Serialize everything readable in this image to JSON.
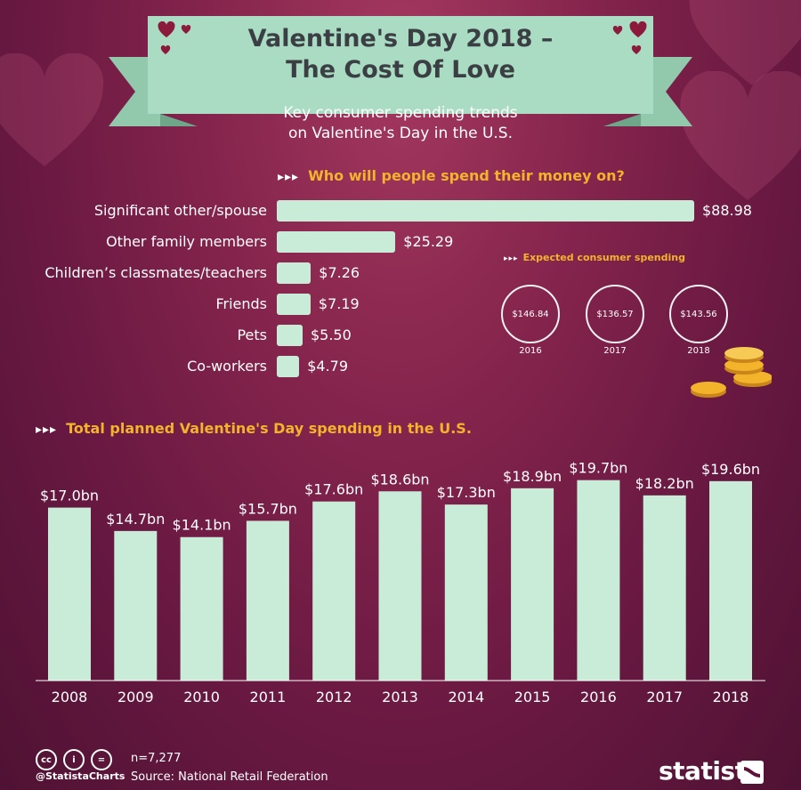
{
  "header": {
    "title_line1": "Valentine's Day 2018 –",
    "title_line2": "The Cost Of Love",
    "subtitle_line1": "Key consumer spending trends",
    "subtitle_line2": "on Valentine's Day in the U.S."
  },
  "section1": {
    "arrows": "▸▸▸",
    "title": "Who will people spend their money on?"
  },
  "section2": {
    "arrows": "▸▸▸",
    "title": "Total planned Valentine's Day spending in the U.S."
  },
  "section3": {
    "arrows": "▸▸▸",
    "title": "Expected consumer spending"
  },
  "expected": [
    {
      "value": "$146.84",
      "year": "2016"
    },
    {
      "value": "$136.57",
      "year": "2017"
    },
    {
      "value": "$143.56",
      "year": "2018"
    }
  ],
  "footer": {
    "cc_icons": [
      "cc",
      "i",
      "="
    ],
    "handle": "@StatistaCharts",
    "sample": "n=7,277",
    "source": "Source: National Retail Federation",
    "brand": "statista"
  },
  "colors": {
    "bar": "#c9ecd8",
    "accent": "#f3b32b",
    "ribbon": "#a9dcc2",
    "heart": "#8b1a3c",
    "coin": "#f3b32b"
  },
  "chart_data": [
    {
      "type": "bar",
      "orientation": "horizontal",
      "title": "Who will people spend their money on?",
      "categories": [
        "Significant other/spouse",
        "Other family members",
        "Children’s classmates/teachers",
        "Friends",
        "Pets",
        "Co-workers"
      ],
      "values": [
        88.98,
        25.29,
        7.26,
        7.19,
        5.5,
        4.79
      ],
      "labels": [
        "$88.98",
        "$25.29",
        "$7.26",
        "$7.19",
        "$5.50",
        "$4.79"
      ]
    },
    {
      "type": "bar",
      "title": "Total planned Valentine's Day spending in the U.S.",
      "categories": [
        "2008",
        "2009",
        "2010",
        "2011",
        "2012",
        "2013",
        "2014",
        "2015",
        "2016",
        "2017",
        "2018"
      ],
      "values": [
        17.0,
        14.7,
        14.1,
        15.7,
        17.6,
        18.6,
        17.3,
        18.9,
        19.7,
        18.2,
        19.6
      ],
      "labels": [
        "$17.0bn",
        "$14.7bn",
        "$14.1bn",
        "$15.7bn",
        "$17.6bn",
        "$18.6bn",
        "$17.3bn",
        "$18.9bn",
        "$19.7bn",
        "$18.2bn",
        "$19.6bn"
      ]
    }
  ]
}
